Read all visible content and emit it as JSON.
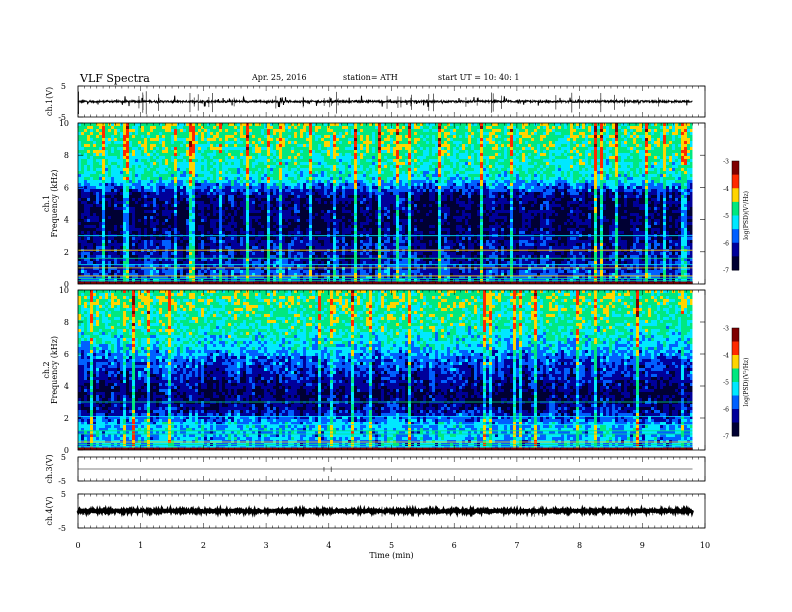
{
  "header": {
    "title": "VLF Spectra",
    "date": "Apr. 25, 2016",
    "station": "station= ATH",
    "start": "start UT =  10: 40: 1"
  },
  "colorbar": {
    "label": "log(PSD)(V²/Hz)",
    "ticks": [
      "-3",
      "-4",
      "-5",
      "-6",
      "-7"
    ],
    "colormap": [
      "#7f0000",
      "#ff2a00",
      "#ffd400",
      "#00e880",
      "#00e8ff",
      "#0060ff",
      "#00009a",
      "#000033"
    ]
  },
  "chart_data": [
    {
      "type": "line",
      "panel": "ch1-voltage",
      "ylabel": "ch.1(V)",
      "ylim": [
        -5,
        5
      ],
      "yticks": [
        "5",
        "-5"
      ],
      "x_range_min": [
        0,
        9.8
      ],
      "baseline": 0.0,
      "noise_amplitude": 0.3
    },
    {
      "type": "heatmap",
      "panel": "ch1-spectrogram",
      "channel_label": "ch.1",
      "ylabel": "Frequency (kHz)",
      "ylim": [
        0,
        10
      ],
      "yticks": [
        "0",
        "2",
        "4",
        "6",
        "8",
        "10"
      ],
      "x_range_min": [
        0,
        9.8
      ],
      "clim": [
        -7,
        -3
      ],
      "freq_profile_khz": [
        0.5,
        1.5,
        2.5,
        3.5,
        4.5,
        5.5,
        6.5,
        7.5,
        8.5,
        9.5
      ],
      "freq_profile_logpsd": [
        -5.9,
        -6.2,
        -6.3,
        -6.6,
        -6.6,
        -6.4,
        -5.2,
        -5.0,
        -4.8,
        -4.7
      ]
    },
    {
      "type": "heatmap",
      "panel": "ch2-spectrogram",
      "channel_label": "ch.2",
      "ylabel": "Frequency (kHz)",
      "ylim": [
        0,
        10
      ],
      "yticks": [
        "0",
        "2",
        "4",
        "6",
        "8",
        "10"
      ],
      "x_range_min": [
        0,
        9.8
      ],
      "clim": [
        -7,
        -3
      ],
      "freq_profile_khz": [
        0.5,
        1.5,
        2.5,
        3.5,
        4.5,
        5.5,
        6.5,
        7.5,
        8.5,
        9.5
      ],
      "freq_profile_logpsd": [
        -5.5,
        -5.4,
        -6.3,
        -6.6,
        -6.2,
        -5.9,
        -5.3,
        -5.0,
        -4.8,
        -4.7
      ]
    },
    {
      "type": "line",
      "panel": "ch3-voltage",
      "ylabel": "ch.3(V)",
      "ylim": [
        -5,
        5
      ],
      "yticks": [
        "5",
        "-5"
      ],
      "x_range_min": [
        0,
        9.8
      ],
      "baseline": 0.0,
      "noise_amplitude": 0.02
    },
    {
      "type": "line",
      "panel": "ch4-voltage",
      "ylabel": "ch.4(V)",
      "ylim": [
        -5,
        5
      ],
      "yticks": [
        "5",
        "-5"
      ],
      "x_range_min": [
        0,
        9.8
      ],
      "baseline": 0.0,
      "noise_amplitude": 0.25
    }
  ],
  "xaxis": {
    "label": "Time (min)",
    "xlim": [
      0,
      10
    ],
    "ticks": [
      "0",
      "1",
      "2",
      "3",
      "4",
      "5",
      "6",
      "7",
      "8",
      "9",
      "10"
    ]
  }
}
